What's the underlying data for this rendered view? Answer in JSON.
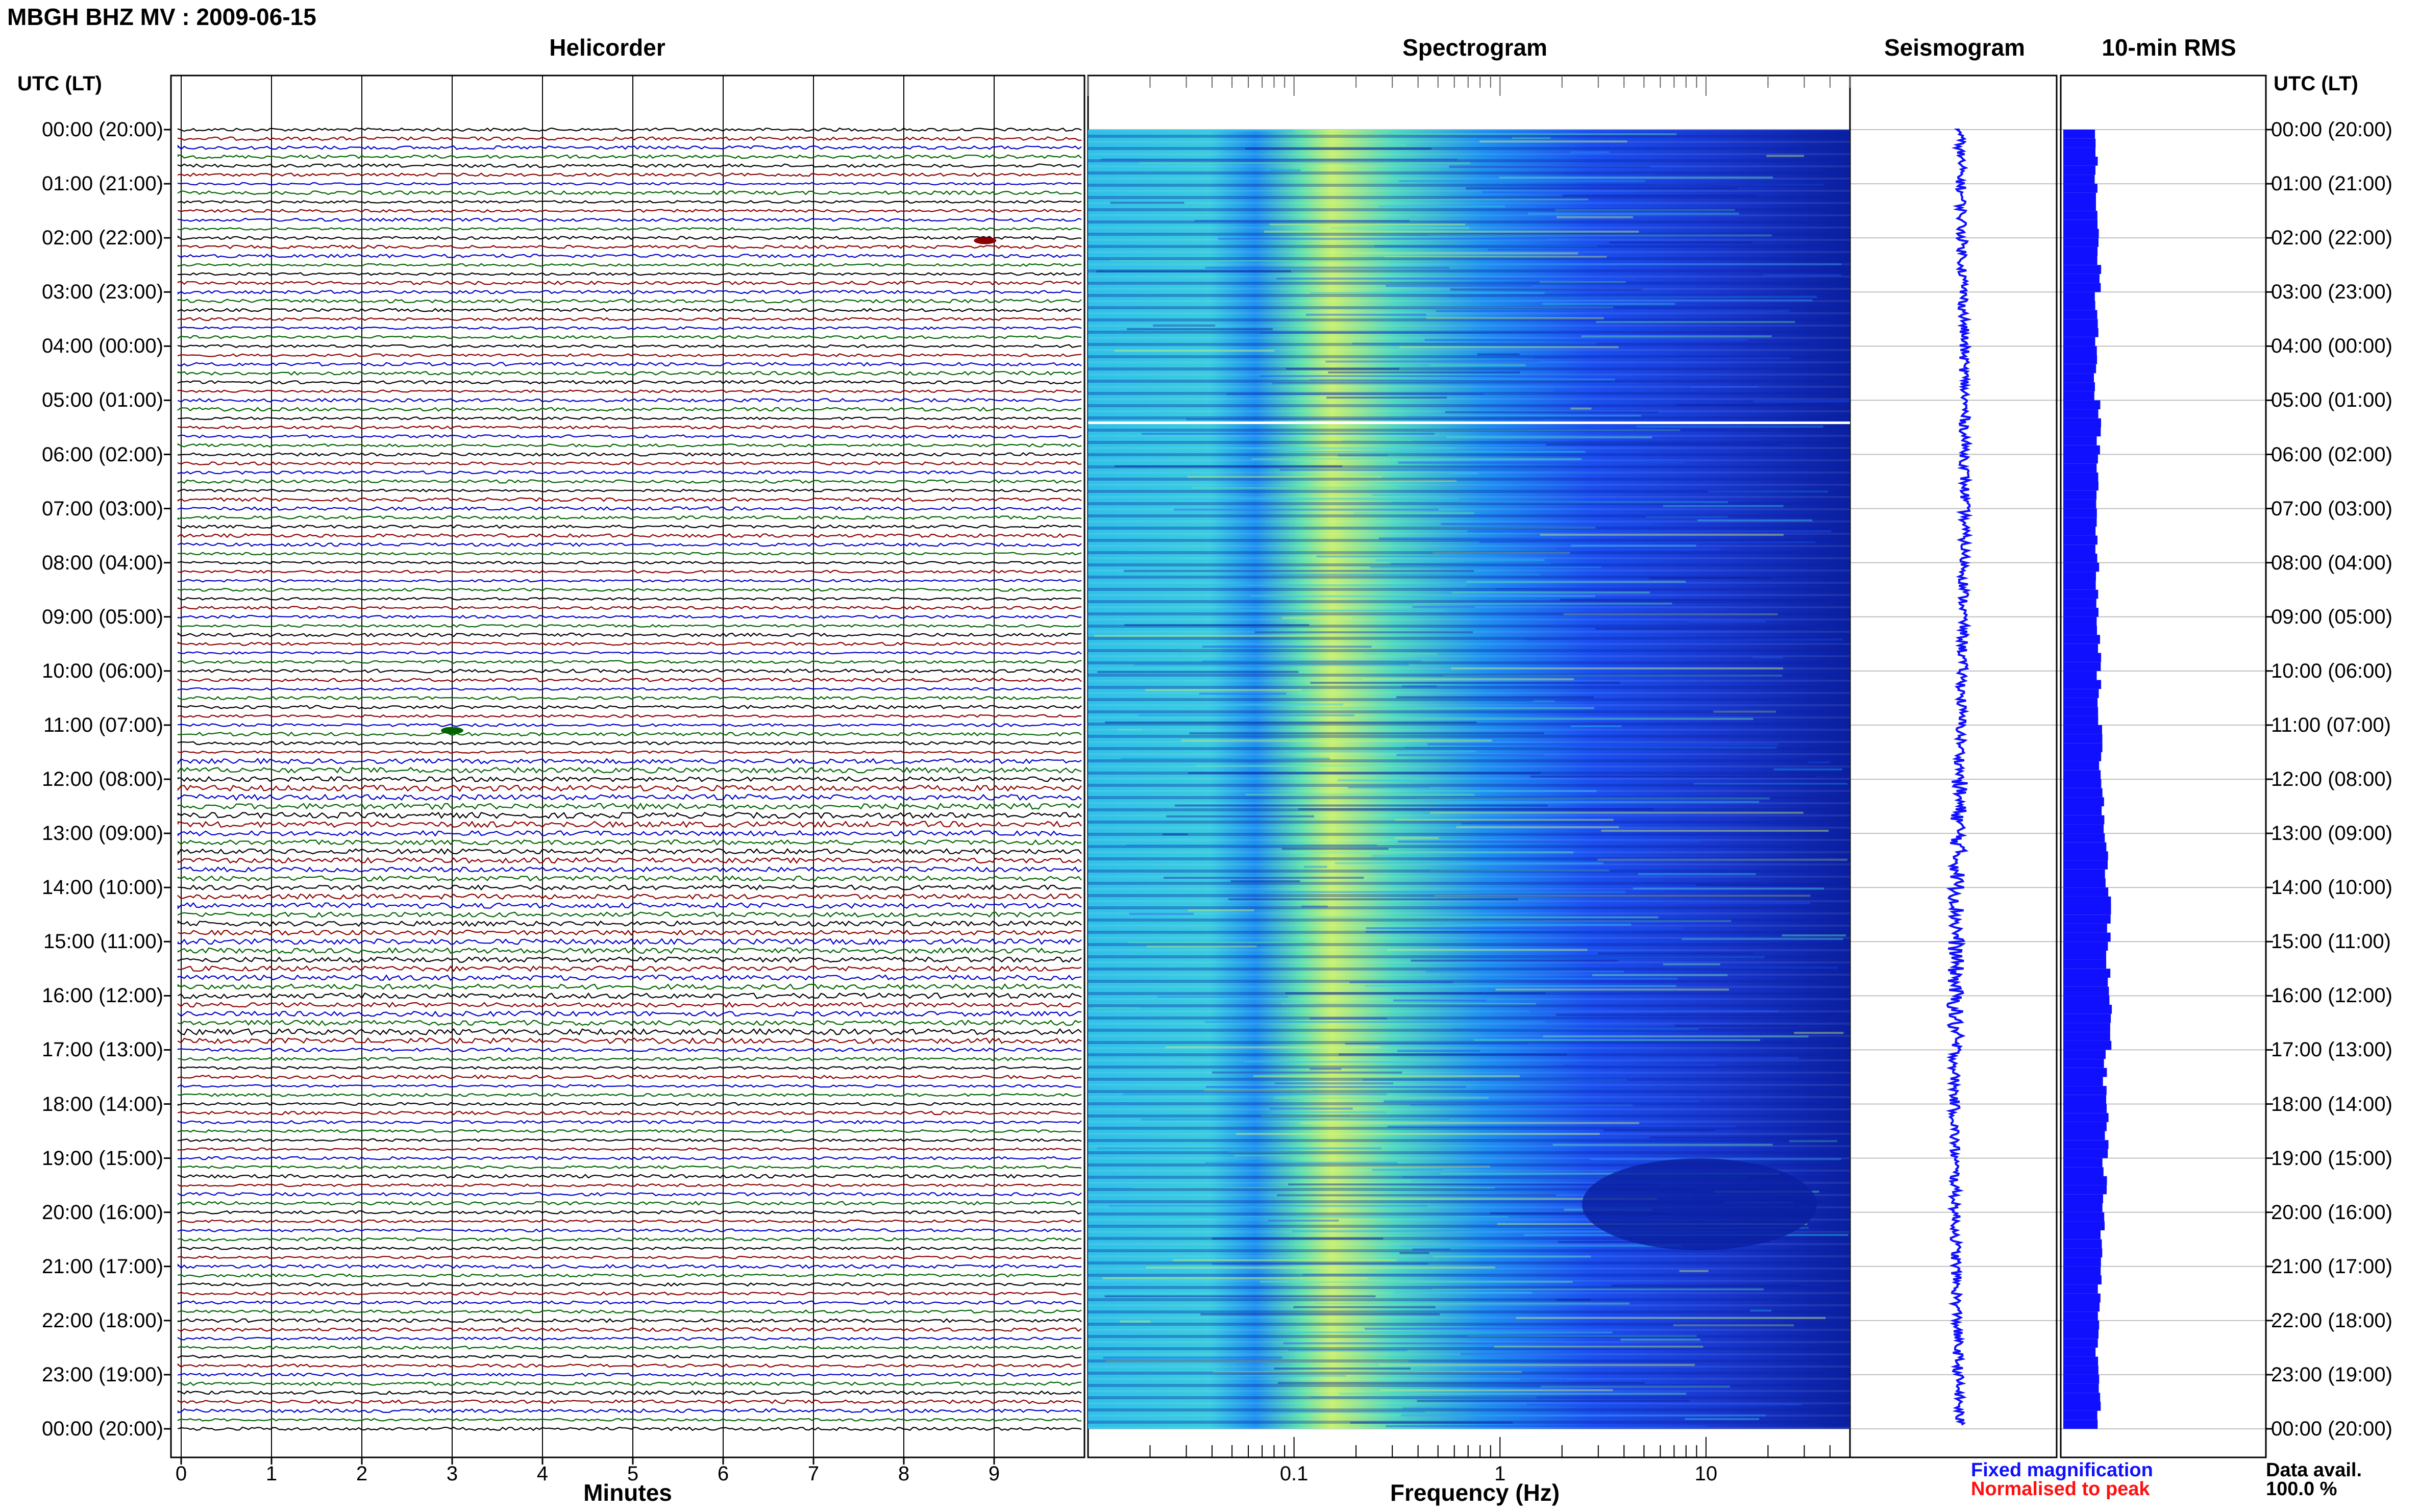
{
  "header": {
    "title": "MBGH BHZ MV : 2009-06-15"
  },
  "panels": {
    "helicorder": "Helicorder",
    "spectrogram": "Spectrogram",
    "seismogram": "Seismogram",
    "rms": "10-min RMS"
  },
  "axis": {
    "utc_label_left": "UTC (LT)",
    "utc_label_right": "UTC (LT)",
    "minutes_label": "Minutes",
    "frequency_label": "Frequency (Hz)"
  },
  "legend": {
    "fixed": "Fixed magnification",
    "normalised": "Normalised to peak",
    "avail_label": "Data avail.",
    "avail_value": "100.0 %"
  },
  "chart_data": [
    {
      "type": "line",
      "name": "helicorder",
      "title": "Helicorder",
      "xlabel": "Minutes",
      "xlim": [
        0,
        10
      ],
      "x_ticks": [
        "0",
        "1",
        "2",
        "3",
        "4",
        "5",
        "6",
        "7",
        "8",
        "9"
      ],
      "time_ticks": [
        "00:00 (20:00)",
        "01:00 (21:00)",
        "02:00 (22:00)",
        "03:00 (23:00)",
        "04:00 (00:00)",
        "05:00 (01:00)",
        "06:00 (02:00)",
        "07:00 (03:00)",
        "08:00 (04:00)",
        "09:00 (05:00)",
        "10:00 (06:00)",
        "11:00 (07:00)",
        "12:00 (08:00)",
        "13:00 (09:00)",
        "14:00 (10:00)",
        "15:00 (11:00)",
        "16:00 (12:00)",
        "17:00 (13:00)",
        "18:00 (14:00)",
        "19:00 (15:00)",
        "20:00 (16:00)",
        "21:00 (17:00)",
        "22:00 (18:00)",
        "23:00 (19:00)",
        "00:00 (20:00)"
      ],
      "trace_count": 144,
      "trace_colors": [
        "#000000",
        "#8b0000",
        "#0000cc",
        "#006400"
      ],
      "events": [
        {
          "minute": 8.9,
          "hour": 2.05,
          "color": "#8b0000"
        },
        {
          "minute": 3.0,
          "hour": 11.1,
          "color": "#006400"
        }
      ]
    },
    {
      "type": "heatmap",
      "name": "spectrogram",
      "title": "Spectrogram",
      "xlabel": "Frequency (Hz)",
      "x_scale": "log",
      "xlim": [
        0.01,
        50
      ],
      "x_ticks": [
        "0.1",
        "1",
        "10"
      ],
      "colormap": [
        "#0a1fa0",
        "#1a4ff0",
        "#1e90f0",
        "#30c0e8",
        "#60e0b0",
        "#c8f070"
      ]
    },
    {
      "type": "line",
      "name": "seismogram",
      "title": "Seismogram",
      "series_color": "#1010ff"
    },
    {
      "type": "bar",
      "name": "rms",
      "title": "10-min RMS",
      "bar_color": "#1010ff",
      "hours": [
        0,
        1,
        2,
        3,
        4,
        5,
        6,
        7,
        8,
        9,
        10,
        11,
        12,
        13,
        14,
        15,
        16,
        17,
        18,
        19,
        20,
        21,
        22,
        23
      ],
      "values": [
        0.58,
        0.6,
        0.62,
        0.58,
        0.56,
        0.62,
        0.6,
        0.58,
        0.6,
        0.62,
        0.62,
        0.66,
        0.7,
        0.76,
        0.8,
        0.78,
        0.82,
        0.72,
        0.76,
        0.72,
        0.68,
        0.64,
        0.6,
        0.62
      ]
    }
  ]
}
